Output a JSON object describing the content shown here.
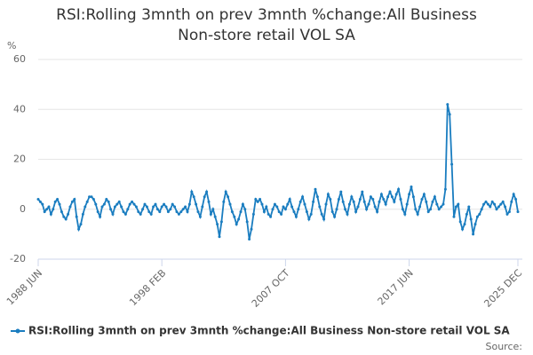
{
  "chart_data": {
    "type": "line",
    "title": "RSI:Rolling 3mnth on prev 3mnth %change:All Business Non-store retail VOL SA",
    "y_label": "%",
    "source": "Source:",
    "categories": [
      "1988 JUN",
      null,
      null,
      null,
      null,
      null,
      null,
      null,
      null,
      null,
      null,
      null,
      null,
      null,
      null,
      null,
      null,
      null,
      null,
      null,
      null,
      null,
      null,
      null,
      null,
      null,
      null,
      null,
      null,
      null,
      null,
      null,
      null,
      null,
      null,
      null,
      null,
      null,
      null,
      null,
      null,
      null,
      null,
      null,
      null,
      null,
      null,
      null,
      null,
      null,
      null,
      null,
      null,
      null,
      null,
      null,
      null,
      null,
      "1998 FEB",
      null,
      null,
      null,
      null,
      null,
      null,
      null,
      null,
      null,
      null,
      null,
      null,
      null,
      null,
      null,
      null,
      null,
      null,
      null,
      null,
      null,
      null,
      null,
      null,
      null,
      null,
      null,
      null,
      null,
      null,
      null,
      null,
      null,
      null,
      null,
      null,
      null,
      null,
      null,
      null,
      null,
      null,
      null,
      null,
      null,
      null,
      null,
      null,
      null,
      null,
      null,
      null,
      null,
      null,
      null,
      null,
      null,
      "2007 OCT",
      null,
      null,
      null,
      null,
      null,
      null,
      null,
      null,
      null,
      null,
      null,
      null,
      null,
      null,
      null,
      null,
      null,
      null,
      null,
      null,
      null,
      null,
      null,
      null,
      null,
      null,
      null,
      null,
      null,
      null,
      null,
      null,
      null,
      null,
      null,
      null,
      null,
      null,
      null,
      null,
      null,
      null,
      null,
      null,
      null,
      null,
      null,
      null,
      null,
      null,
      null,
      null,
      null,
      null,
      null,
      null,
      null,
      "2017 JUN",
      null,
      null,
      null,
      null,
      null,
      null,
      null,
      null,
      null,
      null,
      null,
      null,
      null,
      null,
      null,
      null,
      null,
      null,
      null,
      null,
      null,
      null,
      null,
      null,
      null,
      null,
      null,
      null,
      null,
      null,
      null,
      null,
      null,
      null,
      null,
      null,
      null,
      null,
      null,
      null,
      null,
      null,
      null,
      null,
      null,
      null,
      null,
      null,
      null,
      null,
      "2025 DEC"
    ],
    "series": [
      {
        "name": "RSI:Rolling 3mnth on prev 3mnth %change:All Business Non-store retail VOL SA",
        "color": "#1a7dc0",
        "values": [
          4,
          3,
          2,
          -1,
          0,
          1,
          -2,
          0,
          3,
          4,
          2,
          -1,
          -3,
          -4,
          -2,
          1,
          3,
          4,
          -3,
          -8,
          -6,
          -2,
          1,
          3,
          5,
          5,
          4,
          2,
          -1,
          -3,
          1,
          2,
          4,
          3,
          0,
          -2,
          1,
          2,
          3,
          1,
          -1,
          -2,
          0,
          2,
          3,
          2,
          1,
          -1,
          -2,
          0,
          2,
          1,
          -1,
          -2,
          1,
          2,
          0,
          -1,
          1,
          2,
          1,
          -1,
          0,
          2,
          1,
          -1,
          -2,
          -1,
          0,
          1,
          -1,
          2,
          7,
          5,
          2,
          -1,
          -3,
          1,
          5,
          7,
          3,
          -2,
          0,
          -3,
          -6,
          -11,
          -5,
          3,
          7,
          5,
          2,
          -1,
          -3,
          -6,
          -4,
          -1,
          2,
          0,
          -5,
          -12,
          -8,
          -2,
          4,
          3,
          4,
          2,
          -1,
          1,
          -2,
          -3,
          0,
          2,
          1,
          -1,
          -2,
          1,
          0,
          2,
          4,
          1,
          -1,
          -3,
          0,
          3,
          5,
          2,
          -1,
          -4,
          -2,
          3,
          8,
          5,
          1,
          -2,
          -4,
          2,
          6,
          4,
          -1,
          -3,
          0,
          4,
          7,
          3,
          0,
          -2,
          2,
          5,
          3,
          -1,
          1,
          4,
          7,
          3,
          0,
          2,
          5,
          4,
          1,
          -1,
          3,
          6,
          4,
          2,
          5,
          7,
          5,
          3,
          6,
          8,
          4,
          0,
          -2,
          2,
          6,
          9,
          5,
          0,
          -2,
          1,
          4,
          6,
          3,
          -1,
          0,
          3,
          5,
          2,
          0,
          1,
          2,
          8,
          42,
          38,
          18,
          -3,
          1,
          2,
          -5,
          -8,
          -6,
          -2,
          1,
          -4,
          -10,
          -6,
          -3,
          -2,
          0,
          2,
          3,
          2,
          1,
          3,
          2,
          0,
          1,
          2,
          3,
          1,
          -2,
          -1,
          3,
          6,
          4,
          -1
        ]
      }
    ],
    "ylim": [
      -20,
      60
    ],
    "yticks": [
      -20,
      0,
      20,
      40,
      60
    ],
    "grid": true
  }
}
